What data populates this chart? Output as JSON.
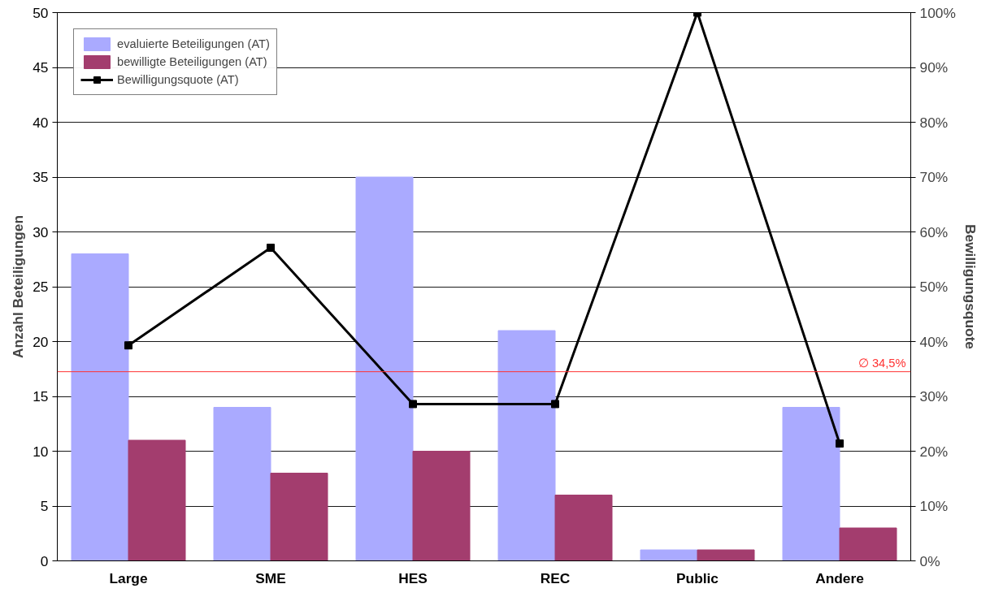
{
  "chart_data": {
    "type": "bar",
    "categories": [
      "Large",
      "SME",
      "HES",
      "REC",
      "Public",
      "Andere"
    ],
    "ylabel": "Anzahl Beteiligungen",
    "y2label": "Bewilligungsquote",
    "ylim": [
      0,
      50
    ],
    "yticks": [
      0,
      5,
      10,
      15,
      20,
      25,
      30,
      35,
      40,
      45,
      50
    ],
    "y2lim": [
      0,
      100
    ],
    "y2ticks": [
      {
        "value": 0,
        "label": "0%"
      },
      {
        "value": 10,
        "label": "10%"
      },
      {
        "value": 20,
        "label": "20%"
      },
      {
        "value": 30,
        "label": "30%"
      },
      {
        "value": 40,
        "label": "40%"
      },
      {
        "value": 50,
        "label": "50%"
      },
      {
        "value": 60,
        "label": "60%"
      },
      {
        "value": 70,
        "label": "70%"
      },
      {
        "value": 80,
        "label": "80%"
      },
      {
        "value": 90,
        "label": "90%"
      },
      {
        "value": 100,
        "label": "100%"
      }
    ],
    "series": [
      {
        "name": "evaluierte Beteiligungen (AT)",
        "color": "#aaaaff",
        "values": [
          28,
          14,
          35,
          21,
          1,
          14
        ]
      },
      {
        "name": "bewilligte Beteiligungen (AT)",
        "color": "#a33d6e",
        "values": [
          11,
          8,
          10,
          6,
          1,
          3
        ]
      },
      {
        "name": "Bewilligungsquote (AT)",
        "type": "line",
        "axis": "y2",
        "color": "#000000",
        "marker": "square",
        "values": [
          39.3,
          57.1,
          28.6,
          28.6,
          100,
          21.4
        ]
      }
    ],
    "ref_lines": [
      {
        "axis": "y2",
        "value": 34.5,
        "label": "∅ 34,5%",
        "color": "#ff3333"
      }
    ],
    "grid": "y",
    "legend": "top left"
  }
}
